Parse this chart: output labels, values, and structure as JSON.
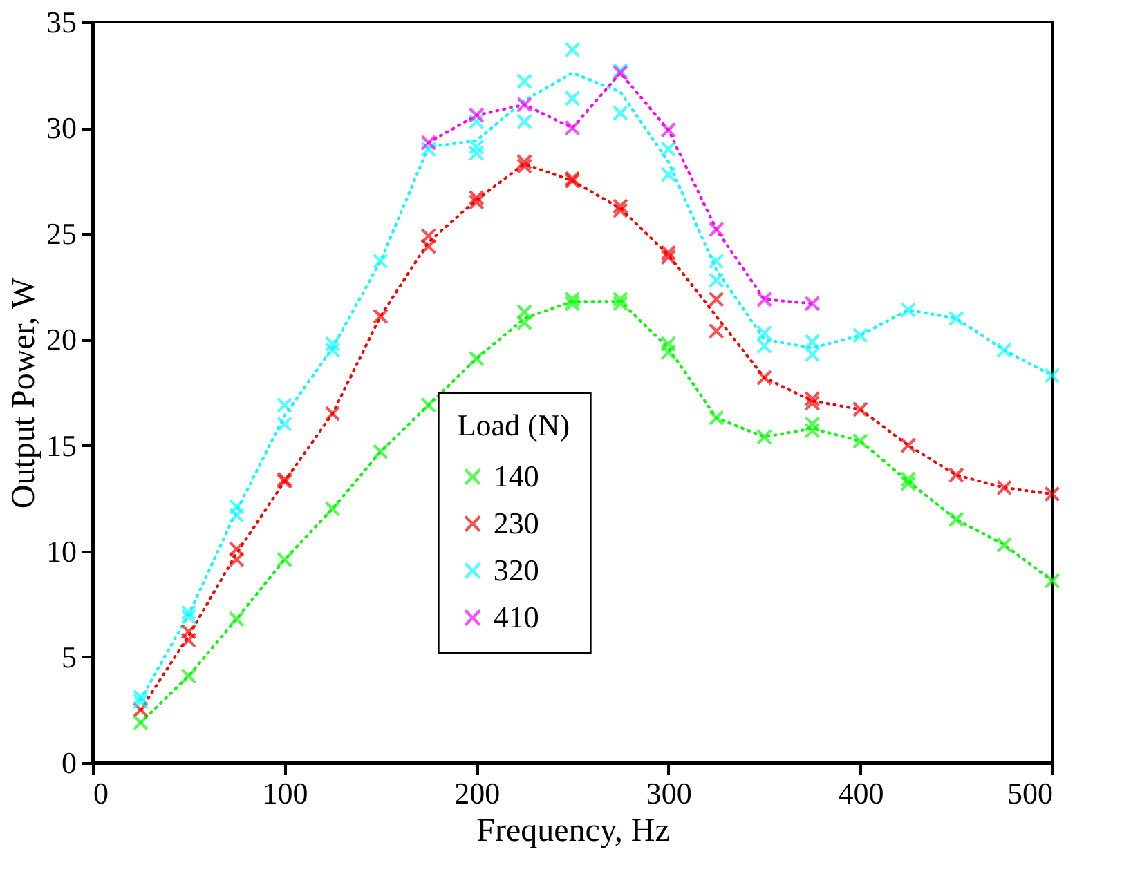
{
  "chart_data": {
    "type": "scatter",
    "xlabel": "Frequency, Hz",
    "ylabel": "Output Power, W",
    "legend_title": "Load (N)",
    "legend": "bottom",
    "grid": false,
    "marker": "cross",
    "xlim": [
      0,
      500
    ],
    "xticks": [
      0,
      100,
      200,
      300,
      400,
      500
    ],
    "ylim": [
      0,
      35
    ],
    "yticks": [
      0,
      5,
      10,
      15,
      20,
      25,
      30,
      35
    ],
    "series": [
      {
        "name": "140",
        "color": "#00ff00",
        "x": [
          25,
          50,
          75,
          100,
          125,
          150,
          175,
          200,
          225,
          225,
          250,
          250,
          275,
          275,
          300,
          300,
          325,
          350,
          375,
          375,
          400,
          425,
          425,
          450,
          475,
          500
        ],
        "values": [
          1.9,
          4.1,
          6.8,
          9.6,
          12.0,
          14.7,
          16.9,
          19.1,
          21.3,
          20.8,
          21.9,
          21.7,
          21.9,
          21.7,
          19.8,
          19.4,
          16.3,
          15.4,
          16.0,
          15.7,
          15.2,
          13.4,
          13.2,
          11.5,
          10.3,
          8.6
        ]
      },
      {
        "name": "230",
        "color": "#ff0000",
        "x": [
          25,
          50,
          50,
          75,
          75,
          100,
          100,
          125,
          150,
          175,
          175,
          200,
          200,
          225,
          225,
          250,
          250,
          275,
          275,
          300,
          300,
          325,
          325,
          350,
          375,
          375,
          400,
          425,
          450,
          475,
          500
        ],
        "values": [
          2.5,
          6.2,
          5.8,
          10.1,
          9.6,
          13.4,
          13.3,
          16.5,
          21.1,
          24.9,
          24.4,
          26.7,
          26.5,
          28.4,
          28.2,
          27.6,
          27.5,
          26.3,
          26.1,
          24.1,
          23.9,
          21.9,
          20.4,
          18.2,
          17.2,
          17.0,
          16.7,
          15.0,
          13.6,
          13.0,
          12.7
        ]
      },
      {
        "name": "320",
        "color": "#00ffff",
        "x": [
          25,
          25,
          50,
          50,
          75,
          75,
          100,
          100,
          125,
          125,
          150,
          175,
          200,
          200,
          200,
          225,
          225,
          250,
          250,
          275,
          275,
          300,
          300,
          325,
          325,
          350,
          350,
          375,
          375,
          400,
          425,
          450,
          475,
          500
        ],
        "values": [
          3.1,
          2.9,
          7.1,
          6.9,
          12.1,
          11.7,
          16.9,
          16.0,
          19.8,
          19.5,
          23.7,
          29.0,
          30.3,
          29.1,
          28.8,
          32.2,
          30.3,
          33.7,
          31.4,
          32.7,
          30.7,
          29.0,
          27.8,
          23.7,
          22.8,
          20.3,
          19.7,
          19.9,
          19.3,
          20.2,
          21.4,
          21.0,
          19.5,
          18.3
        ]
      },
      {
        "name": "410",
        "color": "#ff00ff",
        "x": [
          175,
          200,
          225,
          250,
          275,
          300,
          325,
          350,
          375
        ],
        "values": [
          29.3,
          30.6,
          31.1,
          30.0,
          32.6,
          29.9,
          25.2,
          21.9,
          21.7
        ]
      },
      {
        "type": "line",
        "line_style": "dotted",
        "marker": "none",
        "color": "#00ff00",
        "x": [
          25,
          50,
          75,
          100,
          125,
          150,
          175,
          200,
          225,
          250,
          275,
          300,
          325,
          350,
          375,
          400,
          425,
          450,
          475,
          500
        ],
        "values": [
          1.9,
          4.1,
          6.8,
          9.6,
          12.0,
          14.7,
          16.9,
          19.1,
          21.0,
          21.8,
          21.8,
          19.6,
          16.3,
          15.4,
          15.8,
          15.2,
          13.3,
          11.5,
          10.3,
          8.6
        ]
      },
      {
        "type": "line",
        "line_style": "dotted",
        "marker": "none",
        "color": "#ff0000",
        "x": [
          25,
          50,
          75,
          100,
          125,
          150,
          175,
          200,
          225,
          250,
          275,
          300,
          325,
          350,
          375,
          400,
          425,
          450,
          475,
          500
        ],
        "values": [
          2.5,
          6.0,
          9.9,
          13.3,
          16.5,
          21.1,
          24.6,
          26.6,
          28.3,
          27.5,
          26.2,
          24.0,
          21.1,
          18.2,
          17.1,
          16.7,
          15.0,
          13.6,
          13.0,
          12.7
        ]
      },
      {
        "type": "line",
        "line_style": "dotted",
        "marker": "none",
        "color": "#00ffff",
        "x": [
          25,
          50,
          75,
          100,
          125,
          150,
          175,
          200,
          225,
          250,
          275,
          300,
          325,
          350,
          375,
          400,
          425,
          450,
          475,
          500
        ],
        "values": [
          3.0,
          7.0,
          11.9,
          16.4,
          19.6,
          23.7,
          29.1,
          29.4,
          31.3,
          32.6,
          31.7,
          28.4,
          23.3,
          20.0,
          19.6,
          20.2,
          21.4,
          21.0,
          19.5,
          18.3
        ]
      },
      {
        "type": "line",
        "line_style": "dotted",
        "marker": "none",
        "color": "#ff00ff",
        "x": [
          175,
          200,
          225,
          250,
          275,
          300,
          325,
          350,
          375
        ],
        "values": [
          29.3,
          30.6,
          31.1,
          30.0,
          32.6,
          29.9,
          25.2,
          21.9,
          21.7
        ]
      }
    ]
  }
}
